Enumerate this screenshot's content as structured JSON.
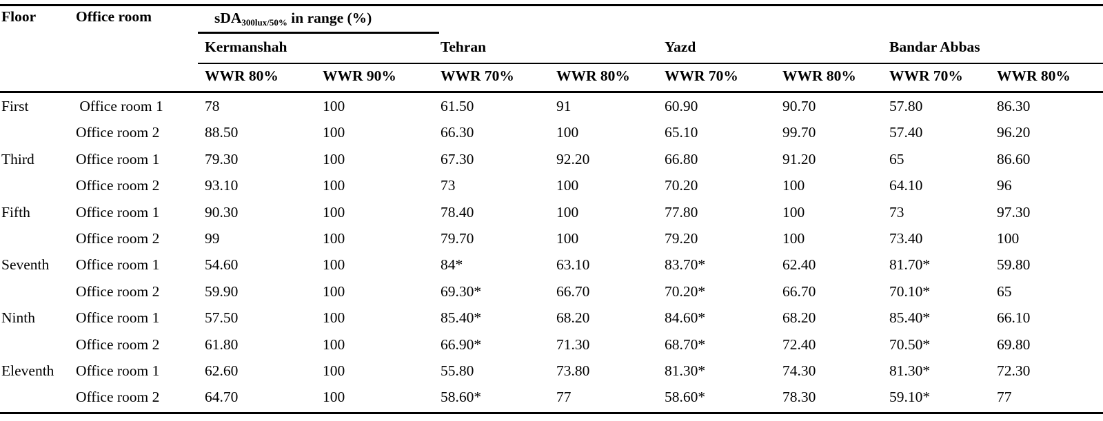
{
  "table": {
    "header": {
      "floor": "Floor",
      "office_room": "Office room",
      "metric_prefix": "sDA",
      "metric_sub": "300lux/50%",
      "metric_suffix": " in range (%)",
      "cities": [
        "Kermanshah",
        "Tehran",
        "Yazd",
        "Bandar Abbas"
      ],
      "wwr": [
        "WWR 80%",
        "WWR 90%",
        "WWR 70%",
        "WWR 80%",
        "WWR 70%",
        "WWR 80%",
        "WWR 70%",
        "WWR 80%"
      ]
    },
    "rows": [
      {
        "floor": "First",
        "room": " Office room 1",
        "values": [
          "78",
          "100",
          "61.50",
          "91",
          "60.90",
          "90.70",
          "57.80",
          "86.30"
        ]
      },
      {
        "floor": "",
        "room": "Office room 2",
        "values": [
          "88.50",
          "100",
          "66.30",
          "100",
          "65.10",
          "99.70",
          "57.40",
          "96.20"
        ]
      },
      {
        "floor": "Third",
        "room": "Office room 1",
        "values": [
          "79.30",
          "100",
          "67.30",
          "92.20",
          "66.80",
          "91.20",
          "65",
          "86.60"
        ]
      },
      {
        "floor": "",
        "room": "Office room 2",
        "values": [
          "93.10",
          "100",
          "73",
          "100",
          "70.20",
          "100",
          "64.10",
          "96"
        ]
      },
      {
        "floor": "Fifth",
        "room": "Office room 1",
        "values": [
          "90.30",
          "100",
          "78.40",
          "100",
          "77.80",
          "100",
          "73",
          "97.30"
        ]
      },
      {
        "floor": "",
        "room": "Office room 2",
        "values": [
          "99",
          "100",
          "79.70",
          "100",
          "79.20",
          "100",
          "73.40",
          "100"
        ]
      },
      {
        "floor": "Seventh",
        "room": "Office room 1",
        "values": [
          "54.60",
          "100",
          "84*",
          "63.10",
          "83.70*",
          "62.40",
          "81.70*",
          "59.80"
        ]
      },
      {
        "floor": "",
        "room": "Office room 2",
        "values": [
          "59.90",
          "100",
          "69.30*",
          "66.70",
          "70.20*",
          "66.70",
          "70.10*",
          "65"
        ]
      },
      {
        "floor": "Ninth",
        "room": "Office room 1",
        "values": [
          "57.50",
          "100",
          "85.40*",
          "68.20",
          "84.60*",
          "68.20",
          "85.40*",
          "66.10"
        ]
      },
      {
        "floor": "",
        "room": "Office room 2",
        "values": [
          "61.80",
          "100",
          "66.90*",
          "71.30",
          "68.70*",
          "72.40",
          "70.50*",
          "69.80"
        ]
      },
      {
        "floor": "Eleventh",
        "room": "Office room 1",
        "values": [
          "62.60",
          "100",
          "55.80",
          "73.80",
          "81.30*",
          "74.30",
          "81.30*",
          "72.30"
        ]
      },
      {
        "floor": "",
        "room": "Office room 2",
        "values": [
          "64.70",
          "100",
          "58.60*",
          "77",
          "58.60*",
          "78.30",
          "59.10*",
          "77"
        ]
      }
    ]
  }
}
